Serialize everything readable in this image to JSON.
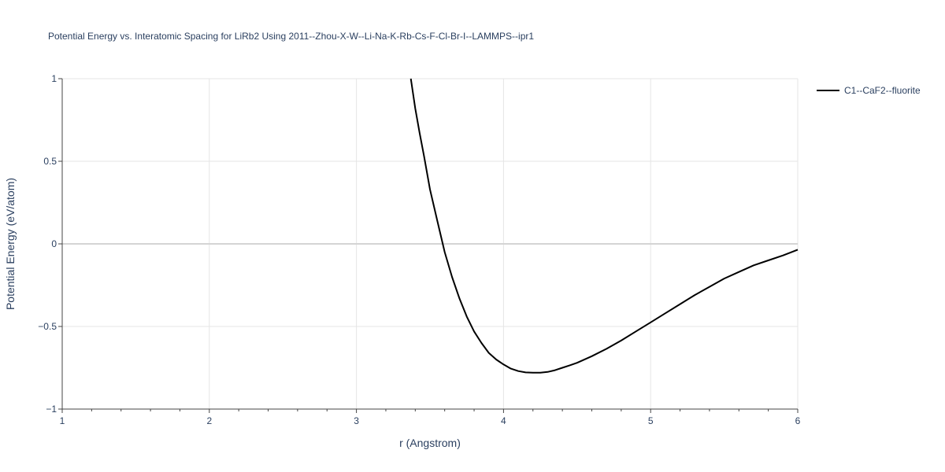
{
  "chart_data": {
    "type": "line",
    "title": "Potential Energy vs. Interatomic Spacing for LiRb2 Using 2011--Zhou-X-W--Li-Na-K-Rb-Cs-F-Cl-Br-I--LAMMPS--ipr1",
    "xlabel": "r (Angstrom)",
    "ylabel": "Potential Energy (eV/atom)",
    "xlim": [
      1,
      6
    ],
    "ylim": [
      -1,
      1
    ],
    "x_ticks": [
      1,
      2,
      3,
      4,
      5,
      6
    ],
    "x_tick_labels": [
      "1",
      "2",
      "3",
      "4",
      "5",
      "6"
    ],
    "y_ticks": [
      -1,
      -0.5,
      0,
      0.5,
      1
    ],
    "y_tick_labels": [
      "−1",
      "−0.5",
      "0",
      "0.5",
      "1"
    ],
    "grid": true,
    "legend_position": "top-right",
    "colors": {
      "line": "#000000",
      "grid": "#e5e5e5",
      "zeroline": "#d4d4d4",
      "text": "#2a3f5f"
    },
    "series": [
      {
        "name": "C1--CaF2--fluorite",
        "x": [
          3.37,
          3.4,
          3.43,
          3.46,
          3.5,
          3.55,
          3.6,
          3.65,
          3.7,
          3.75,
          3.8,
          3.85,
          3.9,
          3.95,
          4.0,
          4.05,
          4.1,
          4.15,
          4.2,
          4.25,
          4.3,
          4.35,
          4.4,
          4.45,
          4.5,
          4.6,
          4.7,
          4.8,
          4.9,
          5.0,
          5.1,
          5.2,
          5.3,
          5.4,
          5.5,
          5.6,
          5.7,
          5.8,
          5.9,
          6.0
        ],
        "y": [
          1.0,
          0.82,
          0.67,
          0.53,
          0.33,
          0.14,
          -0.05,
          -0.2,
          -0.33,
          -0.44,
          -0.53,
          -0.6,
          -0.66,
          -0.7,
          -0.73,
          -0.755,
          -0.77,
          -0.778,
          -0.78,
          -0.78,
          -0.775,
          -0.765,
          -0.75,
          -0.735,
          -0.72,
          -0.68,
          -0.635,
          -0.585,
          -0.53,
          -0.475,
          -0.42,
          -0.365,
          -0.31,
          -0.26,
          -0.21,
          -0.17,
          -0.13,
          -0.1,
          -0.07,
          -0.035
        ]
      }
    ]
  }
}
